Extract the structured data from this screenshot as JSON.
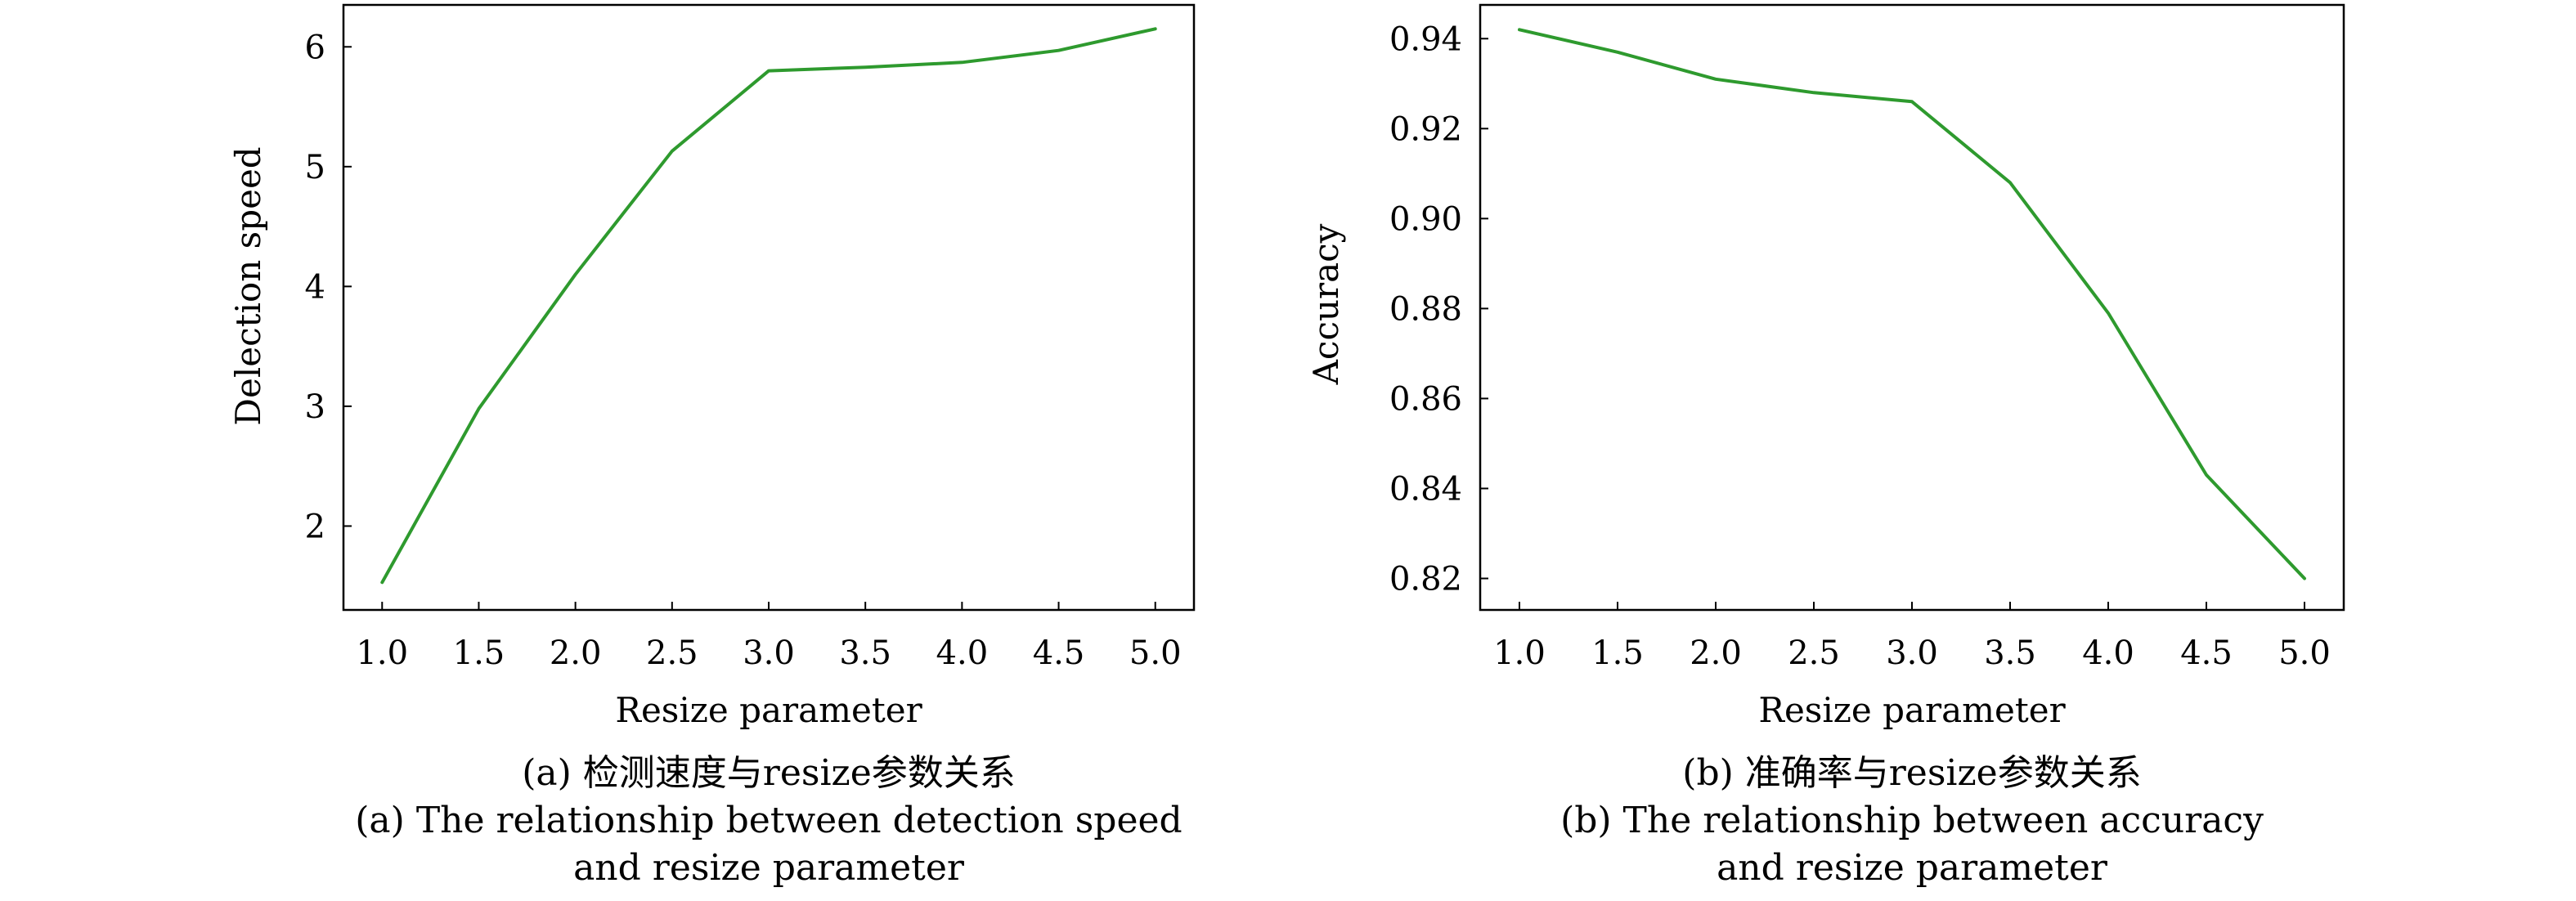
{
  "chart_data": [
    {
      "type": "line",
      "xlabel": "Resize parameter",
      "ylabel": "Delection speed",
      "x": [
        1.0,
        1.5,
        2.0,
        2.5,
        3.0,
        3.5,
        4.0,
        4.5,
        5.0
      ],
      "xticks": [
        "1.0",
        "1.5",
        "2.0",
        "2.5",
        "3.0",
        "3.5",
        "4.0",
        "4.5",
        "5.0"
      ],
      "yticks": [
        "2",
        "3",
        "4",
        "5",
        "6"
      ],
      "ytick_values": [
        2,
        3,
        4,
        5,
        6
      ],
      "xlim": [
        0.8,
        5.2
      ],
      "ylim": [
        1.3,
        6.35
      ],
      "series": [
        {
          "values": [
            1.53,
            2.98,
            4.1,
            5.13,
            5.8,
            5.83,
            5.87,
            5.97,
            6.15
          ],
          "color": "#2e9a2e"
        }
      ],
      "caption": [
        "(a) 检测速度与resize参数关系",
        "(a) The relationship between detection speed",
        "and resize parameter"
      ]
    },
    {
      "type": "line",
      "xlabel": "Resize parameter",
      "ylabel": "Accuracy",
      "x": [
        1.0,
        1.5,
        2.0,
        2.5,
        3.0,
        3.5,
        4.0,
        4.5,
        5.0
      ],
      "xticks": [
        "1.0",
        "1.5",
        "2.0",
        "2.5",
        "3.0",
        "3.5",
        "4.0",
        "4.5",
        "5.0"
      ],
      "yticks": [
        "0.82",
        "0.84",
        "0.86",
        "0.88",
        "0.90",
        "0.92",
        "0.94"
      ],
      "ytick_values": [
        0.82,
        0.84,
        0.86,
        0.88,
        0.9,
        0.92,
        0.94
      ],
      "xlim": [
        0.8,
        5.2
      ],
      "ylim": [
        0.813,
        0.9475
      ],
      "series": [
        {
          "values": [
            0.942,
            0.937,
            0.931,
            0.928,
            0.926,
            0.908,
            0.879,
            0.843,
            0.82
          ],
          "color": "#2e9a2e"
        }
      ],
      "caption": [
        "(b) 准确率与resize参数关系",
        "(b) The relationship between accuracy",
        "and resize parameter"
      ]
    }
  ]
}
